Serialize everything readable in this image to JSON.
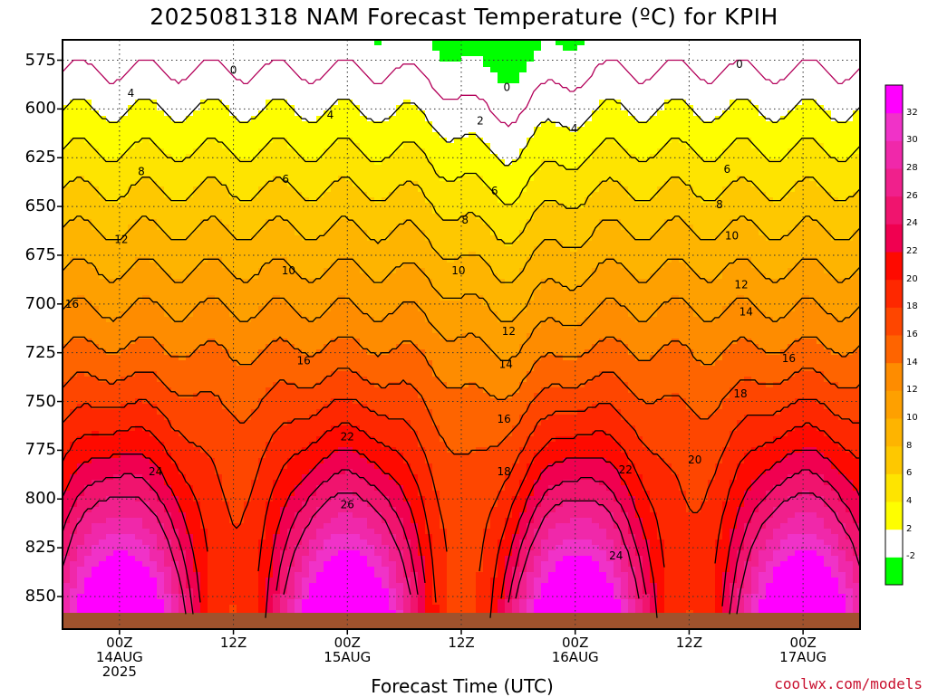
{
  "title": "2025081318 NAM Forecast Temperature (ºC) for KPIH",
  "x_axis_title": "Forecast Time (UTC)",
  "credit": "coolwx.com/models",
  "chart_data": {
    "type": "time-height cross-section",
    "variable": "Temperature",
    "units": "°C",
    "station": "KPIH",
    "model": "NAM",
    "init": "2025081318",
    "y_axis": {
      "quantity": "pressure (hPa)",
      "inverted": true,
      "ticks": [
        575,
        600,
        625,
        650,
        675,
        700,
        725,
        750,
        775,
        800,
        825,
        850
      ]
    },
    "x_axis": {
      "ticks": [
        {
          "hour": 6,
          "lines": [
            "00Z",
            "14AUG",
            "2025"
          ]
        },
        {
          "hour": 18,
          "lines": [
            "12Z"
          ]
        },
        {
          "hour": 30,
          "lines": [
            "00Z",
            "15AUG"
          ]
        },
        {
          "hour": 42,
          "lines": [
            "12Z"
          ]
        },
        {
          "hour": 54,
          "lines": [
            "00Z",
            "16AUG"
          ]
        },
        {
          "hour": 66,
          "lines": [
            "12Z"
          ]
        },
        {
          "hour": 78,
          "lines": [
            "00Z",
            "17AUG"
          ]
        }
      ]
    },
    "colorbar": {
      "labels": [
        "-2",
        "2",
        "4",
        "6",
        "8",
        "10",
        "12",
        "14",
        "16",
        "18",
        "20",
        "22",
        "24",
        "26",
        "28",
        "30",
        "32"
      ],
      "colors": [
        "#00ff00",
        "#ffffff",
        "#fefe00",
        "#fee400",
        "#fec800",
        "#feb400",
        "#fea000",
        "#fe8c00",
        "#fe6400",
        "#fe4600",
        "#fe2800",
        "#fe0a00",
        "#f00050",
        "#f0146e",
        "#f0208c",
        "#f028aa",
        "#f032c8",
        "#ff00ff"
      ]
    },
    "contour_labels": [
      {
        "value": "0",
        "hour": 18.0,
        "p": 580
      },
      {
        "value": "0",
        "hour": 46.8,
        "p": 589
      },
      {
        "value": "0",
        "hour": 71.3,
        "p": 577
      },
      {
        "value": "2",
        "hour": 44.0,
        "p": 606
      },
      {
        "value": "4",
        "hour": 7.2,
        "p": 592
      },
      {
        "value": "4",
        "hour": 28.2,
        "p": 603
      },
      {
        "value": "4",
        "hour": 53.9,
        "p": 610
      },
      {
        "value": "6",
        "hour": 23.5,
        "p": 636
      },
      {
        "value": "6",
        "hour": 45.5,
        "p": 642
      },
      {
        "value": "6",
        "hour": 70.0,
        "p": 631
      },
      {
        "value": "8",
        "hour": 8.3,
        "p": 632
      },
      {
        "value": "8",
        "hour": 42.4,
        "p": 657
      },
      {
        "value": "8",
        "hour": 69.2,
        "p": 649
      },
      {
        "value": "10",
        "hour": 23.8,
        "p": 683
      },
      {
        "value": "10",
        "hour": 41.7,
        "p": 683
      },
      {
        "value": "10",
        "hour": 70.5,
        "p": 665
      },
      {
        "value": "12",
        "hour": 6.2,
        "p": 667
      },
      {
        "value": "12",
        "hour": 47.0,
        "p": 714
      },
      {
        "value": "12",
        "hour": 71.5,
        "p": 690
      },
      {
        "value": "14",
        "hour": 46.7,
        "p": 731
      },
      {
        "value": "14",
        "hour": 72.0,
        "p": 704
      },
      {
        "value": "16",
        "hour": 1.0,
        "p": 700
      },
      {
        "value": "16",
        "hour": 25.4,
        "p": 729
      },
      {
        "value": "16",
        "hour": 46.5,
        "p": 759
      },
      {
        "value": "16",
        "hour": 76.5,
        "p": 728
      },
      {
        "value": "18",
        "hour": 46.5,
        "p": 786
      },
      {
        "value": "18",
        "hour": 71.4,
        "p": 746
      },
      {
        "value": "20",
        "hour": 66.6,
        "p": 780
      },
      {
        "value": "22",
        "hour": 30.0,
        "p": 768
      },
      {
        "value": "22",
        "hour": 59.3,
        "p": 785
      },
      {
        "value": "24",
        "hour": 9.8,
        "p": 786
      },
      {
        "value": "24",
        "hour": 58.3,
        "p": 829
      },
      {
        "value": "26",
        "hour": 30.0,
        "p": 803
      }
    ]
  }
}
